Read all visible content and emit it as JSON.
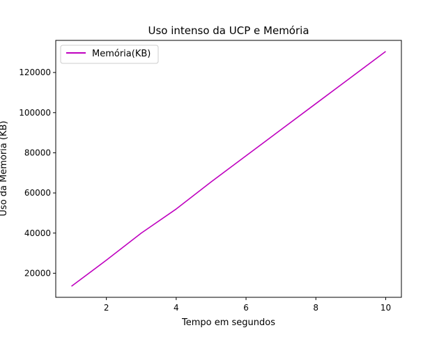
{
  "chart_data": {
    "type": "line",
    "title": "Uso intenso da UCP e Memória",
    "xlabel": "Tempo em segundos",
    "ylabel": "Uso da Memória (KB)",
    "xlim": [
      0.55,
      10.45
    ],
    "ylim": [
      8000,
      136000
    ],
    "xticks": [
      2,
      4,
      6,
      8,
      10
    ],
    "yticks": [
      20000,
      40000,
      60000,
      80000,
      100000,
      120000
    ],
    "grid": false,
    "legend_position": "top-left",
    "series": [
      {
        "name": "Memória(KB)",
        "color": "#bf00bf",
        "x": [
          1,
          2,
          3,
          4,
          5,
          6,
          7,
          8,
          9,
          10
        ],
        "values": [
          13500,
          26500,
          40000,
          52000,
          65500,
          78500,
          91500,
          104500,
          117500,
          130500
        ]
      }
    ]
  }
}
